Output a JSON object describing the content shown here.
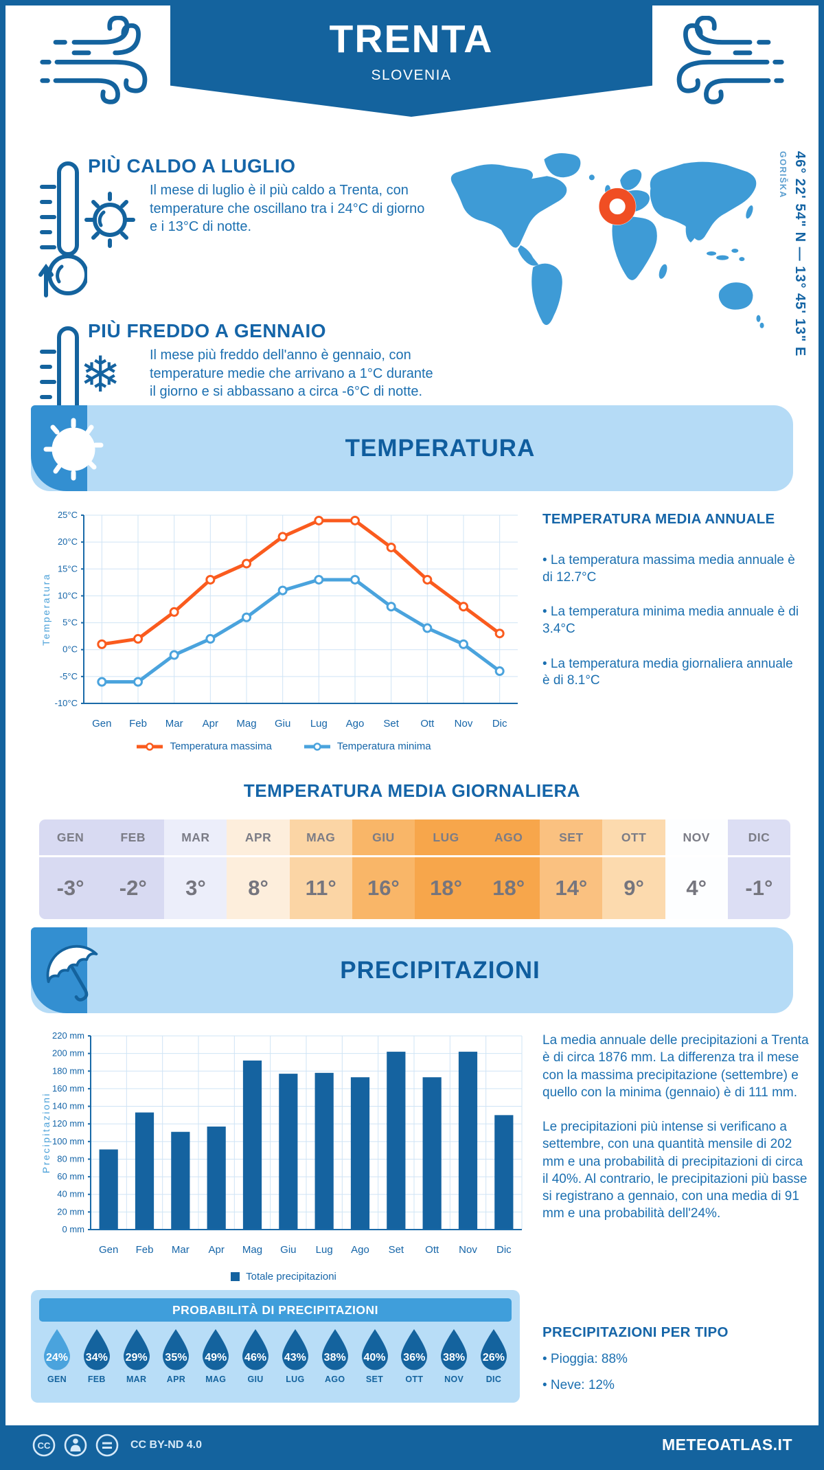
{
  "header": {
    "title": "TRENTA",
    "subtitle": "SLOVENIA"
  },
  "hero": {
    "warm": {
      "title": "PIÙ CALDO A LUGLIO",
      "text": "Il mese di luglio è il più caldo a Trenta, con temperature che oscillano tra i 24°C di giorno e i 13°C di notte."
    },
    "cold": {
      "title": "PIÙ FREDDO A GENNAIO",
      "text": "Il mese più freddo dell'anno è gennaio, con temperature medie che arrivano a 1°C durante il giorno e si abbassano a circa -6°C di notte."
    },
    "map": {
      "coordinates": "46° 22' 54\" N — 13° 45' 13\" E",
      "region": "GORIŠKA"
    }
  },
  "sections": {
    "temperature": "TEMPERATURA",
    "precipitation": "PRECIPITAZIONI"
  },
  "chart_data": [
    {
      "type": "line",
      "categories": [
        "Gen",
        "Feb",
        "Mar",
        "Apr",
        "Mag",
        "Giu",
        "Lug",
        "Ago",
        "Set",
        "Ott",
        "Nov",
        "Dic"
      ],
      "series": [
        {
          "name": "Temperatura massima",
          "values": [
            1,
            2,
            7,
            13,
            16,
            21,
            24,
            24,
            19,
            13,
            8,
            3
          ],
          "color": "#FA5B1E"
        },
        {
          "name": "Temperatura minima",
          "values": [
            -6,
            -6,
            -1,
            2,
            6,
            11,
            13,
            13,
            8,
            4,
            1,
            -4
          ],
          "color": "#4AA3DD"
        }
      ],
      "ylabel": "Temperatura",
      "xlabel": "",
      "title": "",
      "ylim": [
        -10,
        25
      ],
      "ytick_step": 5,
      "ytick_suffix": "°C",
      "grid": true,
      "legend_position": "bottom"
    },
    {
      "type": "bar",
      "categories": [
        "Gen",
        "Feb",
        "Mar",
        "Apr",
        "Mag",
        "Giu",
        "Lug",
        "Ago",
        "Set",
        "Ott",
        "Nov",
        "Dic"
      ],
      "series": [
        {
          "name": "Totale precipitazioni",
          "values": [
            91,
            133,
            111,
            117,
            192,
            177,
            178,
            173,
            202,
            173,
            202,
            130
          ],
          "color": "#1563A0"
        }
      ],
      "ylabel": "Precipitazioni",
      "xlabel": "",
      "title": "",
      "ylim": [
        0,
        220
      ],
      "ytick_step": 20,
      "ytick_suffix": " mm",
      "grid": true,
      "legend_position": "bottom"
    }
  ],
  "annual": {
    "title": "TEMPERATURA MEDIA ANNUALE",
    "bullets": [
      "La temperatura massima media annuale è di 12.7°C",
      "La temperatura minima media annuale è di 3.4°C",
      "La temperatura media giornaliera annuale è di 8.1°C"
    ]
  },
  "daily_table": {
    "title": "TEMPERATURA MEDIA GIORNALIERA",
    "months": [
      "GEN",
      "FEB",
      "MAR",
      "APR",
      "MAG",
      "GIU",
      "LUG",
      "AGO",
      "SET",
      "OTT",
      "NOV",
      "DIC"
    ],
    "values": [
      "-3°",
      "-2°",
      "3°",
      "8°",
      "11°",
      "16°",
      "18°",
      "18°",
      "14°",
      "9°",
      "4°",
      "-1°"
    ],
    "cell_colors": [
      "#D8DAF2",
      "#D8DAF2",
      "#ECEEFA",
      "#FDEEDC",
      "#FBD5A5",
      "#F9B668",
      "#F7A64B",
      "#F7A64B",
      "#FAC180",
      "#FCDAAE",
      "#FDFEFF",
      "#DCDEF4"
    ]
  },
  "precip_text": {
    "p1": "La media annuale delle precipitazioni a Trenta è di circa 1876 mm. La differenza tra il mese con la massima precipitazione (settembre) e quello con la minima (gennaio) è di 111 mm.",
    "p2": "Le precipitazioni più intense si verificano a settembre, con una quantità mensile di 202 mm e una probabilità di precipitazioni di circa il 40%. Al contrario, le precipitazioni più basse si registrano a gennaio, con una media di 91 mm e una probabilità dell'24%."
  },
  "probability": {
    "title": "PROBABILITÀ DI PRECIPITAZIONI",
    "months": [
      "GEN",
      "FEB",
      "MAR",
      "APR",
      "MAG",
      "GIU",
      "LUG",
      "AGO",
      "SET",
      "OTT",
      "NOV",
      "DIC"
    ],
    "values": [
      "24%",
      "34%",
      "29%",
      "35%",
      "49%",
      "46%",
      "43%",
      "38%",
      "40%",
      "36%",
      "38%",
      "26%"
    ],
    "drop_colors": [
      "#4AA3DD",
      "#14639E",
      "#14639E",
      "#14639E",
      "#14639E",
      "#14639E",
      "#14639E",
      "#14639E",
      "#14639E",
      "#14639E",
      "#14639E",
      "#14639E"
    ]
  },
  "precip_type": {
    "title": "PRECIPITAZIONI PER TIPO",
    "bullets": [
      "Pioggia: 88%",
      "Neve: 12%"
    ]
  },
  "footer": {
    "license": "CC BY-ND 4.0",
    "site": "METEOATLAS.IT"
  },
  "icons": {
    "wind": "wind-swirl",
    "warm_thermometer": "thermometer-up",
    "cold_thermometer": "thermometer-down",
    "warm": "sun",
    "cold": "snowflake ❄",
    "temperature_banner": "sun",
    "precipitation_banner": "umbrella",
    "probability": "raindrop",
    "map_marker": "orange-ring"
  },
  "colors": {
    "primary": "#14639E",
    "accent_mid": "#3F9EDB",
    "accent_light": "#B5DBF6",
    "map_blue": "#3E9BD6",
    "marker_orange": "#F04E23",
    "line_orange": "#FA5B1E",
    "line_blue": "#4AA3DD",
    "bar_blue": "#1563A0",
    "grid_blue": "#CFE4F5",
    "axis_blue": "#1A6AA8",
    "axis_title_blue": "#4AA0D8",
    "text_blue": "#1B6FB0",
    "heading_blue": "#1565A8",
    "table_text_gray": "#75757E"
  }
}
